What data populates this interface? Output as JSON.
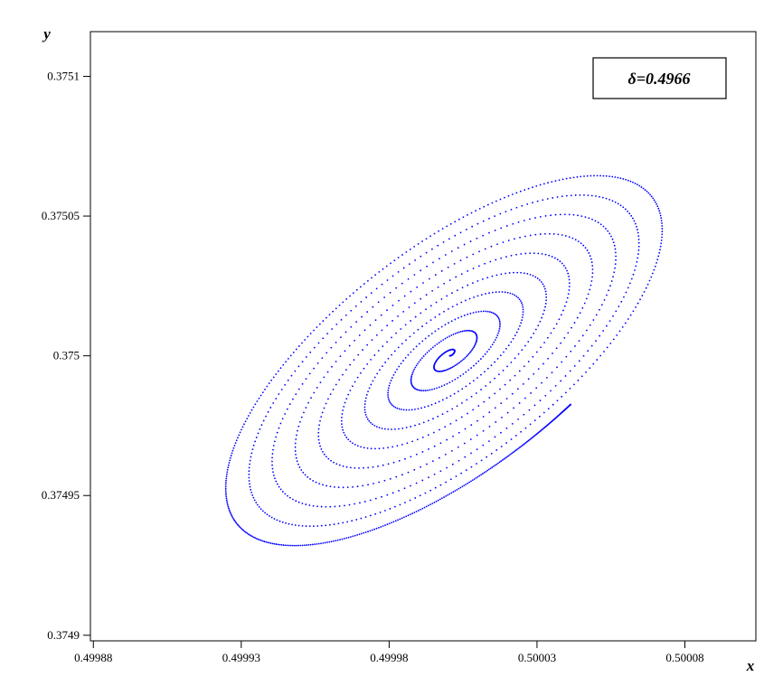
{
  "chart_data": {
    "type": "scatter",
    "title": "",
    "xlabel": "x",
    "ylabel": "y",
    "annotation": "δ=0.4966",
    "xlim": [
      0.499879,
      0.500104
    ],
    "ylim": [
      0.374898,
      0.375116
    ],
    "x_ticks": [
      0.49988,
      0.49993,
      0.49998,
      0.50003,
      0.50008
    ],
    "x_tick_labels": [
      "0.49988",
      "0.49993",
      "0.49998",
      "0.50003",
      "0.50008"
    ],
    "y_ticks": [
      0.3749,
      0.37495,
      0.375,
      0.37505,
      0.3751
    ],
    "y_tick_labels": [
      "0.3749",
      "0.37495",
      "0.375",
      "0.37505",
      "0.3751"
    ],
    "grid": false,
    "legend": "none",
    "point_color": "#0000ff",
    "spiral": {
      "center": [
        0.5000005,
        0.375
      ],
      "tilt_deg": 40,
      "outer_semi_major": 9.65e-05,
      "outer_semi_minor": 4.05e-05,
      "turns": 10,
      "outer_start_angle_deg": 282,
      "point_count": 1700
    }
  }
}
